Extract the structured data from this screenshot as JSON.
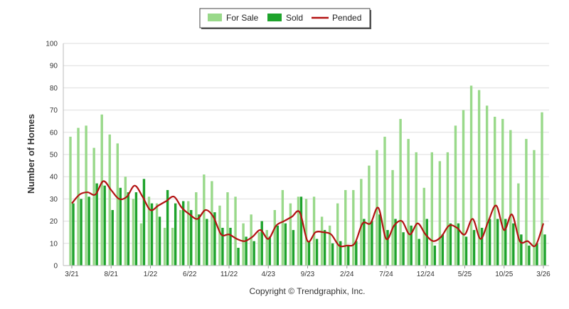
{
  "chart_data": {
    "type": "bar",
    "title": "",
    "ylabel": "Number of Homes",
    "xlabel": "",
    "ylim": [
      0,
      100
    ],
    "yticks": [
      0,
      10,
      20,
      30,
      40,
      50,
      60,
      70,
      80,
      90,
      100
    ],
    "grid": true,
    "legend_position": "top-center",
    "credit": "Copyright © Trendgraphix, Inc.",
    "x_tick_labels": [
      "3/21",
      "8/21",
      "1/22",
      "6/22",
      "11/22",
      "4/23",
      "9/23",
      "2/24",
      "7/24",
      "12/24",
      "5/25",
      "10/25",
      "3/26"
    ],
    "x_tick_index_step": 5,
    "series": [
      {
        "name": "For Sale",
        "kind": "bar",
        "color": "#99d98a",
        "values": [
          58,
          62,
          63,
          53,
          68,
          59,
          55,
          40,
          30,
          19,
          31,
          28,
          17,
          17,
          25,
          29,
          33,
          41,
          38,
          27,
          33,
          31,
          19,
          23,
          15,
          16,
          25,
          34,
          28,
          31,
          30,
          31,
          22,
          18,
          28,
          34,
          34,
          39,
          45,
          52,
          58,
          43,
          66,
          57,
          51,
          35,
          51,
          47,
          51,
          63,
          70,
          81,
          79,
          72,
          67,
          66,
          61,
          37,
          57,
          52,
          69
        ]
      },
      {
        "name": "Sold",
        "kind": "bar",
        "color": "#1ea32c",
        "values": [
          28,
          30,
          31,
          37,
          36,
          25,
          35,
          33,
          33,
          39,
          28,
          22,
          34,
          28,
          29,
          25,
          23,
          21,
          24,
          17,
          17,
          8,
          13,
          11,
          20,
          13,
          18,
          19,
          16,
          31,
          11,
          12,
          16,
          10,
          11,
          9,
          11,
          21,
          20,
          23,
          16,
          21,
          15,
          18,
          12,
          21,
          9,
          14,
          19,
          19,
          13,
          16,
          17,
          21,
          21,
          21,
          19,
          14,
          9,
          10,
          14
        ]
      },
      {
        "name": "Pended",
        "kind": "line",
        "color": "#b31212",
        "values": [
          28,
          32,
          33,
          32,
          38,
          34,
          30,
          31,
          36,
          31,
          25,
          27,
          29,
          31,
          26,
          23,
          21,
          25,
          22,
          14,
          14,
          12,
          11,
          13,
          16,
          12,
          18,
          20,
          22,
          24,
          11,
          15,
          15,
          14,
          9,
          9,
          10,
          19,
          19,
          26,
          12,
          18,
          20,
          14,
          19,
          14,
          11,
          13,
          18,
          17,
          14,
          21,
          12,
          20,
          27,
          16,
          23,
          11,
          11,
          9,
          19
        ]
      }
    ]
  }
}
